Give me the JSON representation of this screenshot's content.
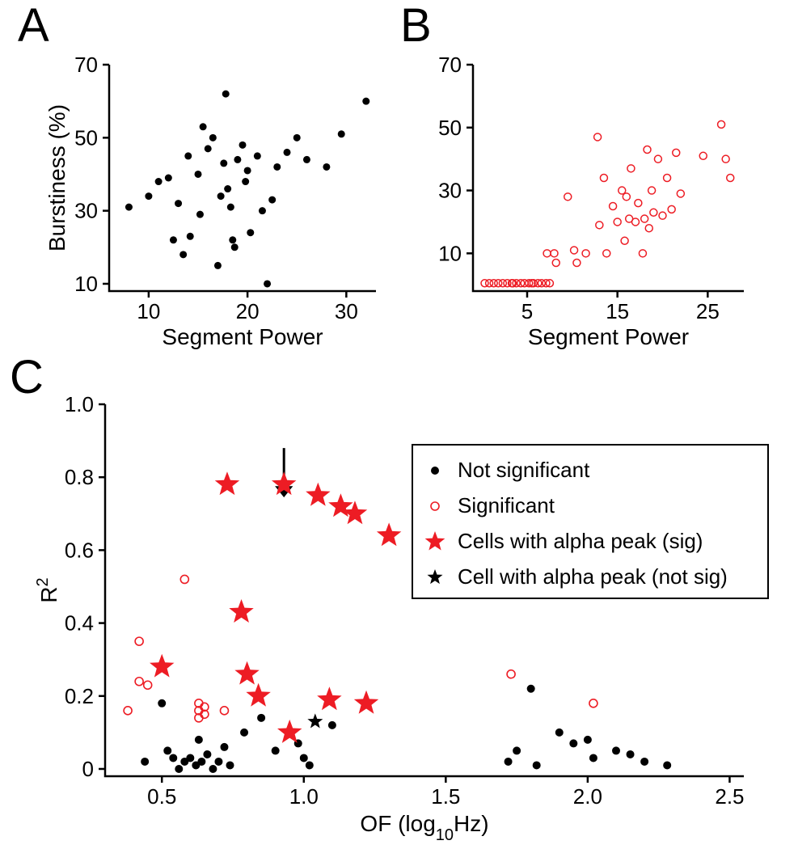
{
  "palette": {
    "black": "#000000",
    "red": "#ed1c24",
    "background": "#ffffff"
  },
  "panelA": {
    "label": "A",
    "type": "scatter",
    "xlabel": "Segment Power",
    "ylabel": "Burstiness (%)",
    "xlim": [
      6,
      33
    ],
    "ylim": [
      8,
      70
    ],
    "xticks": [
      10,
      20,
      30
    ],
    "yticks": [
      10,
      30,
      50,
      70
    ],
    "marker": "filled-circle",
    "marker_color": "#000000",
    "marker_size": 4.5,
    "label_fontsize": 28,
    "tick_fontsize": 26,
    "points": [
      [
        8.0,
        31
      ],
      [
        10.0,
        34
      ],
      [
        11.0,
        38
      ],
      [
        12.0,
        39
      ],
      [
        12.5,
        22
      ],
      [
        13.0,
        32
      ],
      [
        13.5,
        18
      ],
      [
        14.0,
        45
      ],
      [
        14.2,
        23
      ],
      [
        15.0,
        40
      ],
      [
        15.2,
        29
      ],
      [
        15.5,
        53
      ],
      [
        16.0,
        47
      ],
      [
        16.5,
        50
      ],
      [
        17.0,
        15
      ],
      [
        17.3,
        34
      ],
      [
        17.6,
        43
      ],
      [
        17.8,
        62
      ],
      [
        18.0,
        36
      ],
      [
        18.3,
        31
      ],
      [
        18.5,
        22
      ],
      [
        18.7,
        20
      ],
      [
        19.0,
        44
      ],
      [
        19.5,
        48
      ],
      [
        19.8,
        38
      ],
      [
        20.0,
        41
      ],
      [
        20.3,
        24
      ],
      [
        21.0,
        45
      ],
      [
        21.5,
        30
      ],
      [
        22.0,
        10
      ],
      [
        22.5,
        33
      ],
      [
        23.0,
        42
      ],
      [
        24.0,
        46
      ],
      [
        25.0,
        50
      ],
      [
        26.0,
        44
      ],
      [
        28.0,
        42
      ],
      [
        29.5,
        51
      ],
      [
        32.0,
        60
      ]
    ]
  },
  "panelB": {
    "label": "B",
    "type": "scatter",
    "xlabel": "Segment Power",
    "ylabel": "",
    "xlim": [
      -1,
      29
    ],
    "ylim": [
      -2,
      70
    ],
    "xticks": [
      5,
      15,
      25
    ],
    "yticks": [
      10,
      30,
      50,
      70
    ],
    "marker": "open-circle",
    "marker_color": "#ed1c24",
    "marker_size": 4.5,
    "marker_stroke_width": 1.5,
    "label_fontsize": 28,
    "tick_fontsize": 26,
    "points": [
      [
        0.3,
        0.5
      ],
      [
        0.8,
        0.5
      ],
      [
        1.3,
        0.5
      ],
      [
        1.8,
        0.5
      ],
      [
        2.3,
        0.5
      ],
      [
        2.8,
        0.5
      ],
      [
        3.3,
        0.5
      ],
      [
        3.4,
        0.5
      ],
      [
        3.8,
        0.5
      ],
      [
        4.3,
        0.5
      ],
      [
        4.7,
        0.5
      ],
      [
        5.2,
        0.5
      ],
      [
        5.5,
        0.5
      ],
      [
        5.7,
        0.5
      ],
      [
        6.2,
        0.5
      ],
      [
        6.6,
        0.5
      ],
      [
        7.1,
        0.5
      ],
      [
        7.5,
        0.5
      ],
      [
        7.2,
        10
      ],
      [
        8.0,
        10
      ],
      [
        8.2,
        7
      ],
      [
        9.5,
        28
      ],
      [
        10.2,
        11
      ],
      [
        10.5,
        7
      ],
      [
        11.5,
        10
      ],
      [
        12.8,
        47
      ],
      [
        13.0,
        19
      ],
      [
        13.5,
        34
      ],
      [
        13.8,
        10
      ],
      [
        14.5,
        25
      ],
      [
        15.0,
        20
      ],
      [
        15.5,
        30
      ],
      [
        15.8,
        14
      ],
      [
        16.0,
        28
      ],
      [
        16.3,
        21
      ],
      [
        16.5,
        37
      ],
      [
        17.0,
        20
      ],
      [
        17.3,
        26
      ],
      [
        17.8,
        10
      ],
      [
        18.0,
        21
      ],
      [
        18.3,
        43
      ],
      [
        18.5,
        18
      ],
      [
        18.8,
        30
      ],
      [
        19.0,
        23
      ],
      [
        19.5,
        40
      ],
      [
        20.0,
        22
      ],
      [
        20.5,
        34
      ],
      [
        21.0,
        24
      ],
      [
        21.5,
        42
      ],
      [
        22.0,
        29
      ],
      [
        24.5,
        41
      ],
      [
        26.5,
        51
      ],
      [
        27.0,
        40
      ],
      [
        27.5,
        34
      ]
    ]
  },
  "panelC": {
    "label": "C",
    "type": "scatter-multi",
    "xlabel": "OF (log",
    "xlabel_sub": "10",
    "xlabel_tail": "Hz)",
    "ylabel": "R",
    "ylabel_sup": "2",
    "xlim": [
      0.3,
      2.55
    ],
    "ylim": [
      -0.02,
      1.0
    ],
    "xticks": [
      0.5,
      1.0,
      1.5,
      2.0,
      2.5
    ],
    "yticks": [
      0,
      0.2,
      0.4,
      0.6,
      0.8,
      1.0
    ],
    "label_fontsize": 28,
    "tick_fontsize": 26,
    "arrow_at_x": 0.93,
    "legend": {
      "box": true,
      "font_size": 26,
      "items": [
        {
          "marker": "filled-circle",
          "color": "#000000",
          "size": 5,
          "label": "Not significant"
        },
        {
          "marker": "open-circle",
          "color": "#ed1c24",
          "size": 5,
          "label": "Significant"
        },
        {
          "marker": "filled-star",
          "color": "#ed1c24",
          "size": 13,
          "label": "Cells with alpha peak (sig)"
        },
        {
          "marker": "filled-star",
          "color": "#000000",
          "size": 10,
          "label": "Cell with alpha peak (not sig)"
        }
      ]
    },
    "series": {
      "not_significant": {
        "marker": "filled-circle",
        "color": "#000000",
        "size": 5,
        "points": [
          [
            0.44,
            0.02
          ],
          [
            0.5,
            0.18
          ],
          [
            0.52,
            0.05
          ],
          [
            0.54,
            0.03
          ],
          [
            0.56,
            0.0
          ],
          [
            0.58,
            0.02
          ],
          [
            0.6,
            0.03
          ],
          [
            0.62,
            0.01
          ],
          [
            0.63,
            0.08
          ],
          [
            0.64,
            0.02
          ],
          [
            0.66,
            0.04
          ],
          [
            0.68,
            0.0
          ],
          [
            0.7,
            0.02
          ],
          [
            0.72,
            0.06
          ],
          [
            0.74,
            0.01
          ],
          [
            0.79,
            0.1
          ],
          [
            0.85,
            0.14
          ],
          [
            0.9,
            0.05
          ],
          [
            0.98,
            0.07
          ],
          [
            1.0,
            0.03
          ],
          [
            1.02,
            0.01
          ],
          [
            1.1,
            0.12
          ],
          [
            1.72,
            0.02
          ],
          [
            1.75,
            0.05
          ],
          [
            1.8,
            0.22
          ],
          [
            1.82,
            0.01
          ],
          [
            1.9,
            0.1
          ],
          [
            1.95,
            0.07
          ],
          [
            2.0,
            0.08
          ],
          [
            2.02,
            0.03
          ],
          [
            2.1,
            0.05
          ],
          [
            2.15,
            0.04
          ],
          [
            2.2,
            0.02
          ],
          [
            2.28,
            0.01
          ]
        ]
      },
      "significant": {
        "marker": "open-circle",
        "color": "#ed1c24",
        "size": 5,
        "stroke_width": 1.6,
        "points": [
          [
            0.38,
            0.16
          ],
          [
            0.42,
            0.24
          ],
          [
            0.42,
            0.35
          ],
          [
            0.45,
            0.23
          ],
          [
            0.58,
            0.52
          ],
          [
            0.63,
            0.14
          ],
          [
            0.63,
            0.16
          ],
          [
            0.63,
            0.18
          ],
          [
            0.65,
            0.17
          ],
          [
            0.65,
            0.15
          ],
          [
            0.72,
            0.16
          ],
          [
            1.73,
            0.26
          ],
          [
            2.02,
            0.18
          ]
        ]
      },
      "alpha_sig": {
        "marker": "filled-star",
        "color": "#ed1c24",
        "size": 16,
        "points": [
          [
            0.5,
            0.28
          ],
          [
            0.73,
            0.78
          ],
          [
            0.78,
            0.43
          ],
          [
            0.8,
            0.26
          ],
          [
            0.84,
            0.2
          ],
          [
            0.93,
            0.78
          ],
          [
            0.95,
            0.1
          ],
          [
            1.05,
            0.75
          ],
          [
            1.09,
            0.19
          ],
          [
            1.13,
            0.72
          ],
          [
            1.18,
            0.7
          ],
          [
            1.22,
            0.18
          ],
          [
            1.3,
            0.64
          ]
        ]
      },
      "alpha_not_sig": {
        "marker": "filled-star",
        "color": "#000000",
        "size": 10,
        "points": [
          [
            1.04,
            0.13
          ]
        ]
      }
    }
  }
}
